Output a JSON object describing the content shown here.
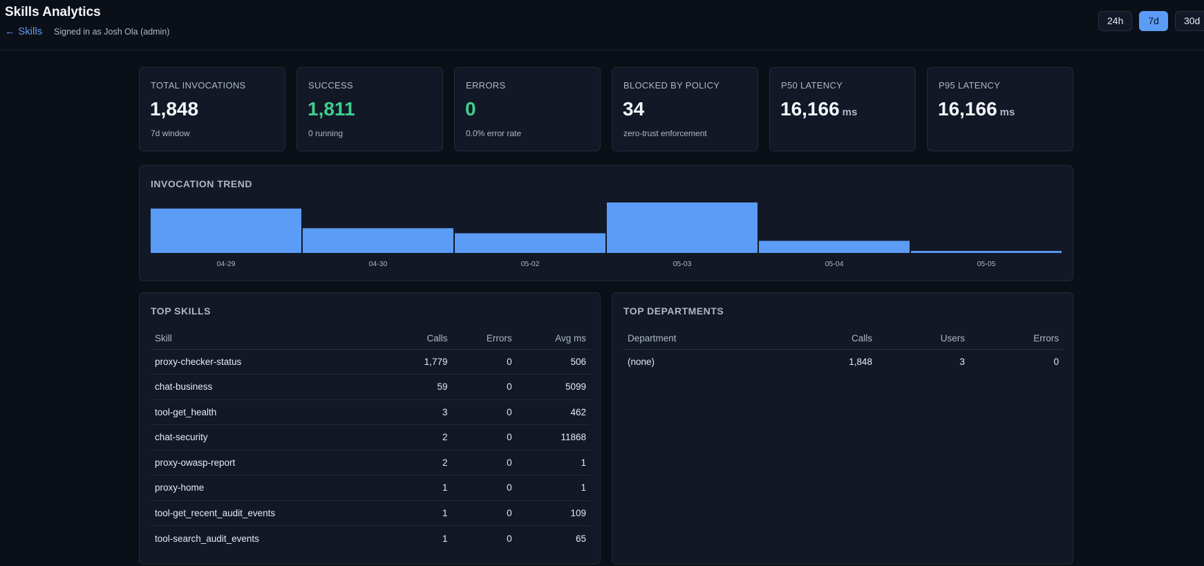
{
  "header": {
    "title": "Skills Analytics",
    "back_label": "← Skills",
    "signed_in": "Signed in as Josh Ola (admin)",
    "ranges": [
      "24h",
      "7d",
      "30d"
    ],
    "active_range": "7d"
  },
  "stats": [
    {
      "label": "TOTAL INVOCATIONS",
      "value": "1,848",
      "unit": "",
      "sub": "7d window",
      "color": "#f3f6fa"
    },
    {
      "label": "SUCCESS",
      "value": "1,811",
      "unit": "",
      "sub": "0 running",
      "color": "#3ecf8e"
    },
    {
      "label": "ERRORS",
      "value": "0",
      "unit": "",
      "sub": "0.0% error rate",
      "color": "#3ecf8e"
    },
    {
      "label": "BLOCKED BY POLICY",
      "value": "34",
      "unit": "",
      "sub": "zero-trust enforcement",
      "color": "#f3f6fa"
    },
    {
      "label": "P50 LATENCY",
      "value": "16,166",
      "unit": "ms",
      "sub": "",
      "color": "#f3f6fa"
    },
    {
      "label": "P95 LATENCY",
      "value": "16,166",
      "unit": "ms",
      "sub": "",
      "color": "#f3f6fa"
    }
  ],
  "trend": {
    "title": "INVOCATION TREND",
    "bar_color": "#5b9cf6",
    "chart_data": {
      "type": "bar",
      "categories": [
        "04-29",
        "04-30",
        "05-02",
        "05-03",
        "05-04",
        "05-05"
      ],
      "values": [
        0.88,
        0.49,
        0.39,
        1.0,
        0.24,
        0.04
      ]
    }
  },
  "top_skills": {
    "title": "TOP SKILLS",
    "columns": [
      "Skill",
      "Calls",
      "Errors",
      "Avg ms"
    ],
    "rows": [
      [
        "proxy-checker-status",
        "1,779",
        "0",
        "506"
      ],
      [
        "chat-business",
        "59",
        "0",
        "5099"
      ],
      [
        "tool-get_health",
        "3",
        "0",
        "462"
      ],
      [
        "chat-security",
        "2",
        "0",
        "11868"
      ],
      [
        "proxy-owasp-report",
        "2",
        "0",
        "1"
      ],
      [
        "proxy-home",
        "1",
        "0",
        "1"
      ],
      [
        "tool-get_recent_audit_events",
        "1",
        "0",
        "109"
      ],
      [
        "tool-search_audit_events",
        "1",
        "0",
        "65"
      ]
    ]
  },
  "top_departments": {
    "title": "TOP DEPARTMENTS",
    "columns": [
      "Department",
      "Calls",
      "Users",
      "Errors"
    ],
    "rows": [
      [
        "(none)",
        "1,848",
        "3",
        "0"
      ]
    ]
  }
}
